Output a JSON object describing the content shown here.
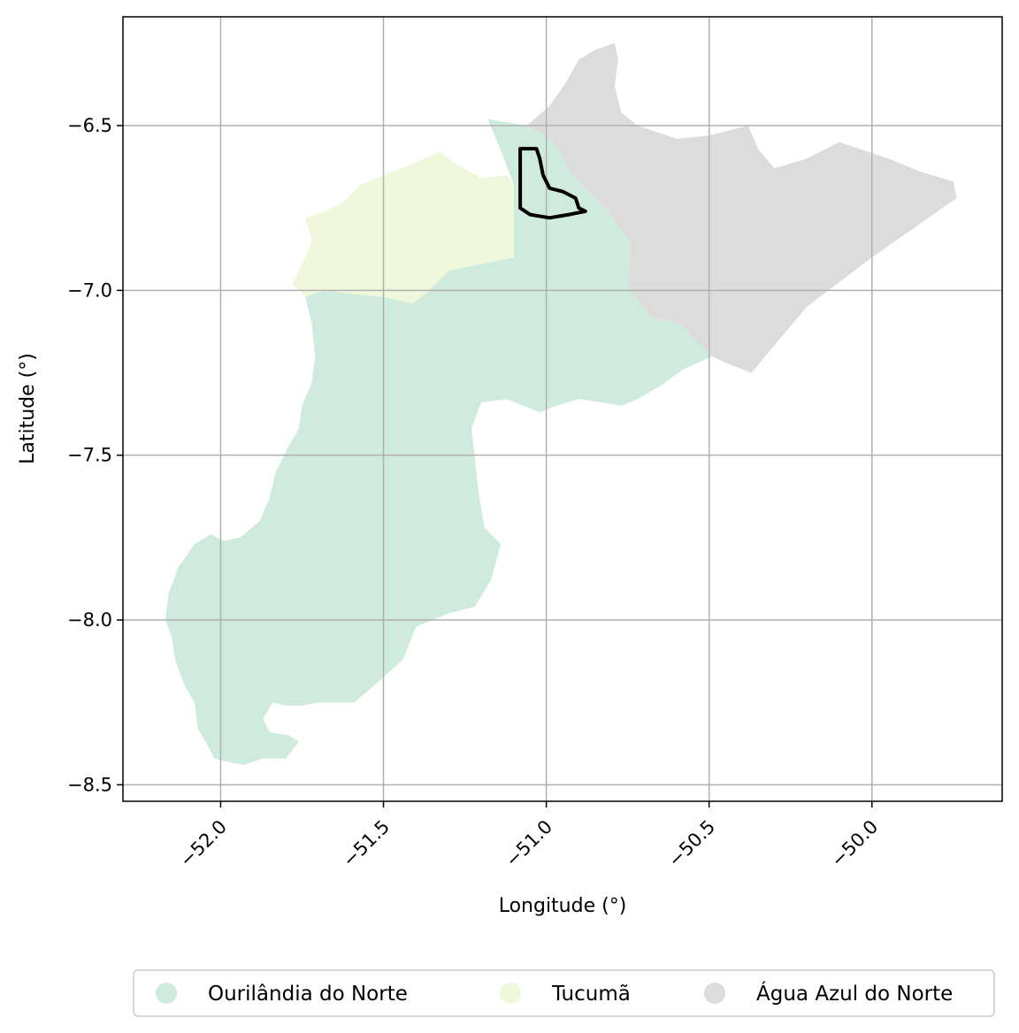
{
  "chart_data": {
    "type": "map",
    "xlabel": "Longitude (°)",
    "ylabel": "Latitude (°)",
    "xlim": [
      -52.3,
      -49.6
    ],
    "ylim": [
      -8.55,
      -6.17
    ],
    "xticks": [
      {
        "value": -52.0,
        "label": "−52.0"
      },
      {
        "value": -51.5,
        "label": "−51.5"
      },
      {
        "value": -51.0,
        "label": "−51.0"
      },
      {
        "value": -50.5,
        "label": "−50.5"
      },
      {
        "value": -50.0,
        "label": "−50.0"
      }
    ],
    "yticks": [
      {
        "value": -6.5,
        "label": "−6.5"
      },
      {
        "value": -7.0,
        "label": "−7.0"
      },
      {
        "value": -7.5,
        "label": "−7.5"
      },
      {
        "value": -8.0,
        "label": "−8.0"
      },
      {
        "value": -8.5,
        "label": "−8.5"
      }
    ],
    "grid": true,
    "legend_placement": "bottom",
    "regions": [
      {
        "name": "Ourilândia do Norte",
        "color": "#cfebdd",
        "outline": [
          [
            -51.18,
            -6.48
          ],
          [
            -51.12,
            -6.49
          ],
          [
            -51.06,
            -6.5
          ],
          [
            -51.02,
            -6.52
          ],
          [
            -50.98,
            -6.55
          ],
          [
            -50.95,
            -6.6
          ],
          [
            -50.92,
            -6.65
          ],
          [
            -50.89,
            -6.68
          ],
          [
            -50.85,
            -6.72
          ],
          [
            -50.82,
            -6.75
          ],
          [
            -50.78,
            -6.8
          ],
          [
            -50.74,
            -6.86
          ],
          [
            -50.75,
            -6.99
          ],
          [
            -50.68,
            -7.08
          ],
          [
            -50.59,
            -7.1
          ],
          [
            -50.53,
            -7.16
          ],
          [
            -50.49,
            -7.2
          ],
          [
            -50.58,
            -7.24
          ],
          [
            -50.65,
            -7.29
          ],
          [
            -50.72,
            -7.33
          ],
          [
            -50.77,
            -7.35
          ],
          [
            -50.83,
            -7.34
          ],
          [
            -50.9,
            -7.33
          ],
          [
            -50.97,
            -7.35
          ],
          [
            -51.02,
            -7.37
          ],
          [
            -51.07,
            -7.35
          ],
          [
            -51.12,
            -7.33
          ],
          [
            -51.2,
            -7.34
          ],
          [
            -51.23,
            -7.42
          ],
          [
            -51.22,
            -7.5
          ],
          [
            -51.21,
            -7.6
          ],
          [
            -51.19,
            -7.72
          ],
          [
            -51.14,
            -7.77
          ],
          [
            -51.17,
            -7.88
          ],
          [
            -51.22,
            -7.96
          ],
          [
            -51.3,
            -7.98
          ],
          [
            -51.4,
            -8.02
          ],
          [
            -51.44,
            -8.12
          ],
          [
            -51.53,
            -8.2
          ],
          [
            -51.59,
            -8.25
          ],
          [
            -51.7,
            -8.25
          ],
          [
            -51.75,
            -8.26
          ],
          [
            -51.8,
            -8.26
          ],
          [
            -51.84,
            -8.25
          ],
          [
            -51.87,
            -8.3
          ],
          [
            -51.85,
            -8.34
          ],
          [
            -51.79,
            -8.35
          ],
          [
            -51.76,
            -8.37
          ],
          [
            -51.8,
            -8.42
          ],
          [
            -51.87,
            -8.42
          ],
          [
            -51.93,
            -8.44
          ],
          [
            -51.98,
            -8.43
          ],
          [
            -52.02,
            -8.42
          ],
          [
            -52.04,
            -8.38
          ],
          [
            -52.07,
            -8.33
          ],
          [
            -52.08,
            -8.25
          ],
          [
            -52.11,
            -8.2
          ],
          [
            -52.14,
            -8.12
          ],
          [
            -52.15,
            -8.05
          ],
          [
            -52.17,
            -8.0
          ],
          [
            -52.16,
            -7.92
          ],
          [
            -52.13,
            -7.84
          ],
          [
            -52.08,
            -7.77
          ],
          [
            -52.03,
            -7.74
          ],
          [
            -51.99,
            -7.76
          ],
          [
            -51.94,
            -7.75
          ],
          [
            -51.88,
            -7.7
          ],
          [
            -51.85,
            -7.63
          ],
          [
            -51.83,
            -7.55
          ],
          [
            -51.79,
            -7.47
          ],
          [
            -51.76,
            -7.42
          ],
          [
            -51.75,
            -7.35
          ],
          [
            -51.72,
            -7.28
          ],
          [
            -51.71,
            -7.2
          ],
          [
            -51.72,
            -7.1
          ],
          [
            -51.74,
            -7.02
          ],
          [
            -51.68,
            -7.0
          ],
          [
            -51.6,
            -7.01
          ],
          [
            -51.5,
            -7.02
          ],
          [
            -51.41,
            -7.04
          ],
          [
            -51.36,
            -7.0
          ],
          [
            -51.3,
            -6.94
          ],
          [
            -51.2,
            -6.92
          ],
          [
            -51.1,
            -6.9
          ],
          [
            -51.1,
            -6.68
          ],
          [
            -51.13,
            -6.6
          ],
          [
            -51.15,
            -6.55
          ],
          [
            -51.18,
            -6.48
          ]
        ]
      },
      {
        "name": "Tucumã",
        "color": "#eff8db",
        "outline": [
          [
            -51.1,
            -6.9
          ],
          [
            -51.2,
            -6.92
          ],
          [
            -51.3,
            -6.94
          ],
          [
            -51.36,
            -7.0
          ],
          [
            -51.41,
            -7.04
          ],
          [
            -51.5,
            -7.02
          ],
          [
            -51.6,
            -7.01
          ],
          [
            -51.68,
            -7.0
          ],
          [
            -51.74,
            -7.02
          ],
          [
            -51.78,
            -6.98
          ],
          [
            -51.75,
            -6.92
          ],
          [
            -51.72,
            -6.85
          ],
          [
            -51.74,
            -6.78
          ],
          [
            -51.68,
            -6.76
          ],
          [
            -51.62,
            -6.73
          ],
          [
            -51.57,
            -6.68
          ],
          [
            -51.5,
            -6.65
          ],
          [
            -51.42,
            -6.62
          ],
          [
            -51.33,
            -6.58
          ],
          [
            -51.27,
            -6.62
          ],
          [
            -51.2,
            -6.66
          ],
          [
            -51.12,
            -6.65
          ],
          [
            -51.1,
            -6.68
          ],
          [
            -51.1,
            -6.9
          ]
        ]
      },
      {
        "name": "Água Azul do Norte",
        "color": "#dcdcdc",
        "outline": [
          [
            -51.06,
            -6.5
          ],
          [
            -50.99,
            -6.44
          ],
          [
            -50.94,
            -6.37
          ],
          [
            -50.9,
            -6.3
          ],
          [
            -50.85,
            -6.27
          ],
          [
            -50.79,
            -6.25
          ],
          [
            -50.78,
            -6.3
          ],
          [
            -50.79,
            -6.38
          ],
          [
            -50.77,
            -6.46
          ],
          [
            -50.72,
            -6.5
          ],
          [
            -50.6,
            -6.54
          ],
          [
            -50.5,
            -6.53
          ],
          [
            -50.38,
            -6.5
          ],
          [
            -50.35,
            -6.57
          ],
          [
            -50.3,
            -6.63
          ],
          [
            -50.2,
            -6.6
          ],
          [
            -50.1,
            -6.55
          ],
          [
            -49.95,
            -6.6
          ],
          [
            -49.85,
            -6.64
          ],
          [
            -49.75,
            -6.67
          ],
          [
            -49.74,
            -6.72
          ],
          [
            -50.0,
            -6.9
          ],
          [
            -50.2,
            -7.05
          ],
          [
            -50.37,
            -7.25
          ],
          [
            -50.45,
            -7.22
          ],
          [
            -50.49,
            -7.2
          ],
          [
            -50.53,
            -7.16
          ],
          [
            -50.59,
            -7.1
          ],
          [
            -50.68,
            -7.08
          ],
          [
            -50.75,
            -6.99
          ],
          [
            -50.74,
            -6.86
          ],
          [
            -50.78,
            -6.8
          ],
          [
            -50.82,
            -6.75
          ],
          [
            -50.85,
            -6.72
          ],
          [
            -50.89,
            -6.68
          ],
          [
            -50.92,
            -6.65
          ],
          [
            -50.95,
            -6.6
          ],
          [
            -50.98,
            -6.55
          ],
          [
            -51.02,
            -6.52
          ],
          [
            -51.06,
            -6.5
          ]
        ]
      }
    ],
    "boundary": {
      "color": "#000000",
      "outline": [
        [
          -51.08,
          -6.57
        ],
        [
          -51.03,
          -6.57
        ],
        [
          -51.02,
          -6.6
        ],
        [
          -51.01,
          -6.65
        ],
        [
          -50.99,
          -6.69
        ],
        [
          -50.95,
          -6.7
        ],
        [
          -50.91,
          -6.72
        ],
        [
          -50.9,
          -6.75
        ],
        [
          -50.88,
          -6.76
        ],
        [
          -50.93,
          -6.77
        ],
        [
          -50.99,
          -6.78
        ],
        [
          -51.05,
          -6.77
        ],
        [
          -51.08,
          -6.75
        ],
        [
          -51.08,
          -6.57
        ]
      ]
    },
    "legend": [
      {
        "label": "Ourilândia do Norte",
        "color": "#cfebdd"
      },
      {
        "label": "Tucumã",
        "color": "#eff8db"
      },
      {
        "label": "Água Azul do Norte",
        "color": "#dcdcdc"
      }
    ]
  }
}
